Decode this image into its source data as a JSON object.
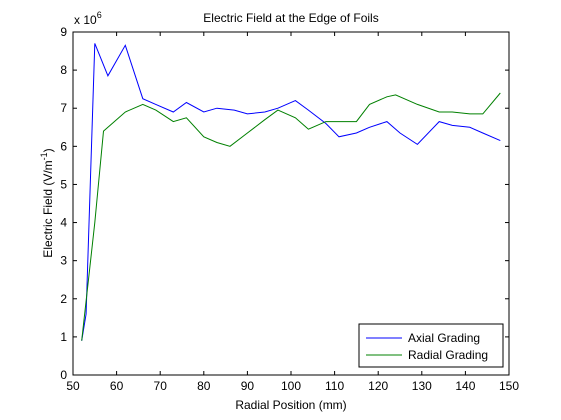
{
  "chart_data": {
    "type": "line",
    "title": "Electric Field at the Edge of Foils",
    "xlabel": "Radial Position (mm)",
    "ylabel": "Electric Field (V/m",
    "ylabel_sup": "-1",
    "ylabel_end": ")",
    "multiplier_base": "x 10",
    "multiplier_exp": "6",
    "xlim": [
      50,
      150
    ],
    "ylim": [
      0,
      9
    ],
    "xticks": [
      50,
      60,
      70,
      80,
      90,
      100,
      110,
      120,
      130,
      140,
      150
    ],
    "yticks": [
      0,
      1,
      2,
      3,
      4,
      5,
      6,
      7,
      8,
      9
    ],
    "grid": false,
    "legend_position": "bottom-right",
    "series": [
      {
        "name": "Axial Grading",
        "color": "#0000ff",
        "x": [
          52,
          53,
          55,
          58,
          62,
          66,
          69,
          73,
          76,
          80,
          83,
          87,
          90,
          94,
          97,
          101,
          104,
          108,
          111,
          115,
          118,
          122,
          125,
          129,
          134,
          137,
          141,
          144,
          148
        ],
        "y": [
          0.9,
          1.6,
          8.7,
          7.85,
          8.65,
          7.25,
          7.1,
          6.9,
          7.15,
          6.9,
          7.0,
          6.95,
          6.85,
          6.9,
          7.0,
          7.2,
          6.95,
          6.6,
          6.25,
          6.35,
          6.5,
          6.65,
          6.35,
          6.05,
          6.65,
          6.55,
          6.5,
          6.35,
          6.15
        ]
      },
      {
        "name": "Radial Grading",
        "color": "#008000",
        "x": [
          52,
          55,
          57,
          59,
          62,
          66,
          69,
          73,
          76,
          80,
          83,
          86,
          90,
          94,
          97,
          101,
          104,
          108,
          111,
          115,
          118,
          122,
          124,
          129,
          134,
          137,
          141,
          144,
          148
        ],
        "y": [
          0.9,
          4.0,
          6.4,
          6.6,
          6.9,
          7.1,
          6.95,
          6.65,
          6.75,
          6.25,
          6.1,
          6.0,
          6.35,
          6.7,
          6.95,
          6.75,
          6.45,
          6.65,
          6.65,
          6.65,
          7.1,
          7.3,
          7.35,
          7.1,
          6.9,
          6.9,
          6.85,
          6.85,
          7.4
        ]
      }
    ]
  }
}
